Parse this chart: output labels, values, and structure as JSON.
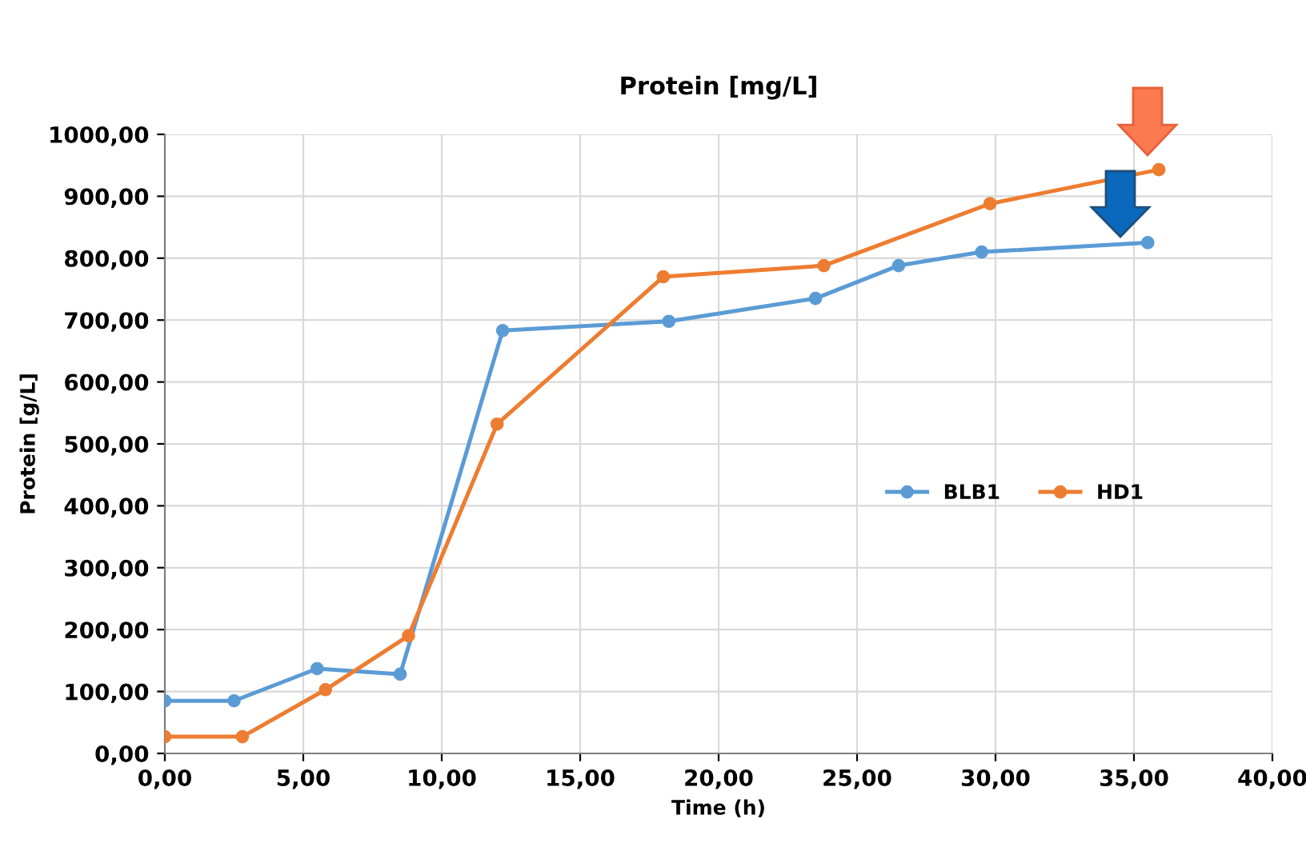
{
  "chart_data": {
    "type": "line",
    "title": "Protein [mg/L]",
    "xlabel": "Time (h)",
    "ylabel": "Protein [g/L]",
    "series": [
      {
        "name": "BLB1",
        "color": "#5b9bd5",
        "x": [
          0,
          2.5,
          5.5,
          8.5,
          12.2,
          18.2,
          23.5,
          26.5,
          29.5,
          35.5
        ],
        "values": [
          85,
          85,
          137,
          128,
          683,
          698,
          735,
          788,
          810,
          825
        ]
      },
      {
        "name": "HD1",
        "color": "#ed7d31",
        "x": [
          0,
          2.8,
          5.8,
          8.8,
          12.0,
          18.0,
          23.8,
          29.8,
          35.9
        ],
        "values": [
          27,
          27,
          103,
          190,
          532,
          770,
          788,
          888,
          943
        ]
      }
    ],
    "xlim": [
      0,
      40
    ],
    "ylim": [
      0,
      1000
    ],
    "xticks": [
      {
        "value": 0,
        "label": "0,00"
      },
      {
        "value": 5,
        "label": "5,00"
      },
      {
        "value": 10,
        "label": "10,00"
      },
      {
        "value": 15,
        "label": "15,00"
      },
      {
        "value": 20,
        "label": "20,00"
      },
      {
        "value": 25,
        "label": "25,00"
      },
      {
        "value": 30,
        "label": "30,00"
      },
      {
        "value": 35,
        "label": "35,00"
      },
      {
        "value": 40,
        "label": "40,00"
      }
    ],
    "yticks": [
      {
        "value": 0,
        "label": "0,00"
      },
      {
        "value": 100,
        "label": "100,00"
      },
      {
        "value": 200,
        "label": "200,00"
      },
      {
        "value": 300,
        "label": "300,00"
      },
      {
        "value": 400,
        "label": "400,00"
      },
      {
        "value": 500,
        "label": "500,00"
      },
      {
        "value": 600,
        "label": "600,00"
      },
      {
        "value": 700,
        "label": "700,00"
      },
      {
        "value": 800,
        "label": "800,00"
      },
      {
        "value": 900,
        "label": "900,00"
      },
      {
        "value": 1000,
        "label": "1000,00"
      }
    ],
    "grid": true,
    "legend": "right",
    "marker": "circle",
    "line_style": "solid"
  }
}
